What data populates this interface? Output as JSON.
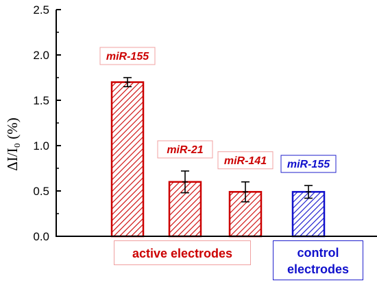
{
  "chart_data": {
    "type": "bar",
    "ylabel": "ΔI/I₀ (%)",
    "ylim": [
      0,
      2.5
    ],
    "yticks": [
      "0.0",
      "0.5",
      "1.0",
      "1.5",
      "2.0",
      "2.5"
    ],
    "bars": [
      {
        "label": "miR-155",
        "value": 1.7,
        "error": 0.05,
        "group": "active",
        "color": "#cc0000"
      },
      {
        "label": "miR-21",
        "value": 0.6,
        "error": 0.12,
        "group": "active",
        "color": "#cc0000"
      },
      {
        "label": "miR-141",
        "value": 0.49,
        "error": 0.11,
        "group": "active",
        "color": "#cc0000"
      },
      {
        "label": "miR-155",
        "value": 0.49,
        "error": 0.07,
        "group": "control",
        "color": "#1010cc"
      }
    ],
    "groups": {
      "active": {
        "label": "active electrodes",
        "color": "#cc0000"
      },
      "control": {
        "label": "control electrodes",
        "color": "#1010cc"
      }
    }
  }
}
